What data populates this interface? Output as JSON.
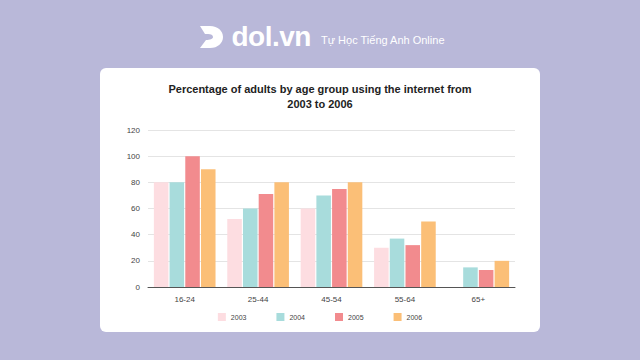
{
  "header": {
    "logo": "dol.vn",
    "tagline": "Tự Học Tiếng Anh Online"
  },
  "chart_data": {
    "type": "bar",
    "title": "Percentage of adults by age group using the internet from\n2003 to 2006",
    "categories": [
      "16-24",
      "25-44",
      "45-54",
      "55-64",
      "65+"
    ],
    "series": [
      {
        "name": "2003",
        "color": "#fddde1",
        "values": [
          80,
          52,
          60,
          30,
          null
        ]
      },
      {
        "name": "2004",
        "color": "#a8dcdc",
        "values": [
          80,
          60,
          70,
          37,
          15
        ]
      },
      {
        "name": "2005",
        "color": "#f28b8e",
        "values": [
          100,
          71,
          75,
          32,
          13
        ]
      },
      {
        "name": "2006",
        "color": "#fbbf77",
        "values": [
          90,
          80,
          80,
          50,
          20
        ]
      }
    ],
    "ylim": [
      0,
      120
    ],
    "yticks": [
      0,
      20,
      40,
      60,
      80,
      100,
      120
    ],
    "grid": true,
    "legend": "bottom"
  }
}
